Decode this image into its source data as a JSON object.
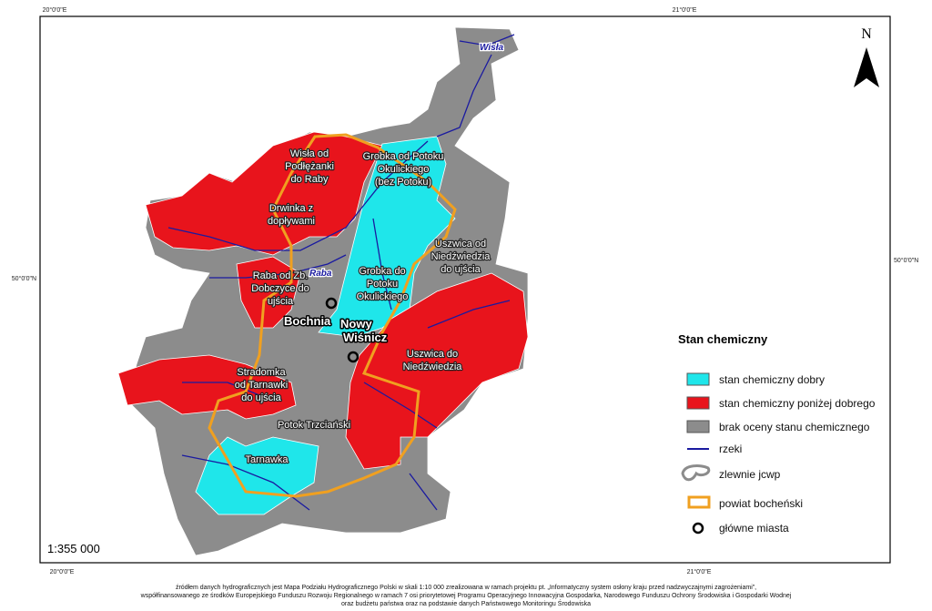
{
  "coordinates": {
    "top": [
      "20°0'0\"E",
      "21°0'0\"E"
    ],
    "bottom": [
      "20°0'0\"E",
      "21°0'0\"E"
    ],
    "left": "50°0'0\"N",
    "right": "50°0'0\"N"
  },
  "north": "N",
  "scale": "1:355 000",
  "rivers": [
    "Wisła",
    "Raba"
  ],
  "regions": [
    {
      "lines": [
        "Wisła od",
        "Podłężanki",
        "do Raby"
      ]
    },
    {
      "lines": [
        "Grobka od Potoku",
        "Okulickiego",
        "(bez Potoku)"
      ]
    },
    {
      "lines": [
        "Drwinka z",
        "dopływami"
      ]
    },
    {
      "lines": [
        "Uszwica od",
        "Niedźwiedzia",
        "do ujścia"
      ]
    },
    {
      "lines": [
        "Raba od Zb.",
        "Dobczyce do",
        "ujścia"
      ]
    },
    {
      "lines": [
        "Grobka do",
        "Potoku",
        "Okulickiego"
      ]
    },
    {
      "lines": [
        "Uszwica do",
        "Niedźwiedzia"
      ]
    },
    {
      "lines": [
        "Stradomka",
        "od Tarnawki",
        "do ujścia"
      ]
    },
    {
      "lines": [
        "Potok Trzciański"
      ]
    },
    {
      "lines": [
        "Tarnawka"
      ]
    }
  ],
  "cities": [
    {
      "lines": [
        "Bochnia"
      ]
    },
    {
      "lines": [
        "Nowy",
        "Wiśnicz"
      ]
    }
  ],
  "legend": {
    "title": "Stan chemiczny",
    "items": [
      "stan chemiczny dobry",
      "stan chemiczny poniżej dobrego",
      "brak oceny stanu chemicznego",
      "rzeki",
      "zlewnie jcwp",
      "powiat bocheński",
      "główne miasta"
    ]
  },
  "footer": [
    "źródłem danych hydrograficznych jest Mapa Podziału Hydrograficznego Polski w skali 1:10 000 zrealizowana w ramach projektu pt. „Informatyczny system osłony kraju przed nadzwyczajnymi zagrożeniami”,",
    "współfinansowanego ze środków Europejskiego Funduszu Rozwoju Regionalnego w ramach 7 osi priorytetowej Programu Operacyjnego Innowacyjna Gospodarka, Narodowego Funduszu Ochrony Środowiska i Gospodarki Wodnej",
    "oraz budżetu państwa oraz na podstawie danych Państwowego Monitoringu Środowiska"
  ]
}
